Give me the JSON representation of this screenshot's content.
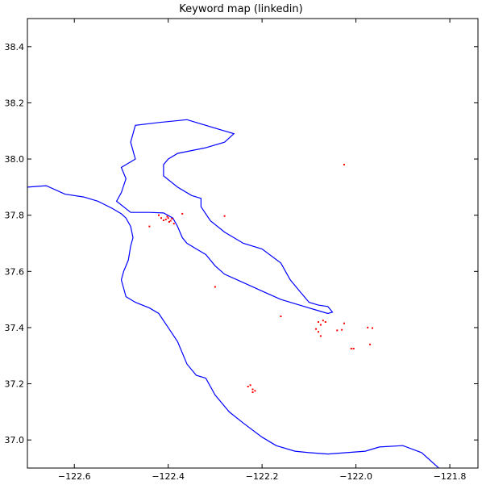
{
  "chart_data": {
    "type": "scatter",
    "title": "Keyword map (linkedin)",
    "xlabel": "",
    "ylabel": "",
    "xlim": [
      -122.7,
      -121.74
    ],
    "ylim": [
      36.9,
      38.5
    ],
    "grid": false,
    "x_ticks": [
      -122.6,
      -122.4,
      -122.2,
      -122.0,
      -121.8
    ],
    "x_tick_labels": [
      "−122.6",
      "−122.4",
      "−122.2",
      "−122.0",
      "−121.8"
    ],
    "y_ticks": [
      37.0,
      37.2,
      37.4,
      37.6,
      37.8,
      38.0,
      38.2,
      38.4
    ],
    "y_tick_labels": [
      "37.0",
      "37.2",
      "37.4",
      "37.6",
      "37.8",
      "38.0",
      "38.2",
      "38.4"
    ],
    "colors": {
      "coastline": "#0000ff",
      "points": "#ff0000"
    },
    "coastline": [
      [
        -122.7,
        37.9
      ],
      [
        -122.66,
        37.905
      ],
      [
        -122.62,
        37.875
      ],
      [
        -122.58,
        37.865
      ],
      [
        -122.55,
        37.85
      ],
      [
        -122.52,
        37.825
      ],
      [
        -122.5,
        37.805
      ],
      [
        -122.49,
        37.79
      ],
      [
        -122.48,
        37.76
      ],
      [
        -122.475,
        37.72
      ],
      [
        -122.48,
        37.69
      ],
      [
        -122.485,
        37.64
      ],
      [
        -122.495,
        37.6
      ],
      [
        -122.5,
        37.57
      ],
      [
        -122.49,
        37.51
      ],
      [
        -122.47,
        37.49
      ],
      [
        -122.44,
        37.47
      ],
      [
        -122.42,
        37.45
      ],
      [
        -122.4,
        37.4
      ],
      [
        -122.38,
        37.35
      ],
      [
        -122.36,
        37.27
      ],
      [
        -122.34,
        37.23
      ],
      [
        -122.32,
        37.22
      ],
      [
        -122.3,
        37.16
      ],
      [
        -122.27,
        37.1
      ],
      [
        -122.24,
        37.06
      ],
      [
        -122.2,
        37.01
      ],
      [
        -122.17,
        36.98
      ],
      [
        -122.13,
        36.96
      ],
      [
        -122.1,
        36.955
      ],
      [
        -122.06,
        36.95
      ],
      [
        -122.02,
        36.955
      ],
      [
        -121.98,
        36.96
      ],
      [
        -121.95,
        36.975
      ],
      [
        -121.9,
        36.98
      ],
      [
        -121.86,
        36.955
      ],
      [
        -121.81,
        36.88
      ]
    ],
    "bay": [
      [
        -122.48,
        37.81
      ],
      [
        -122.44,
        37.81
      ],
      [
        -122.41,
        37.808
      ],
      [
        -122.39,
        37.79
      ],
      [
        -122.38,
        37.76
      ],
      [
        -122.37,
        37.72
      ],
      [
        -122.36,
        37.7
      ],
      [
        -122.34,
        37.68
      ],
      [
        -122.32,
        37.66
      ],
      [
        -122.3,
        37.62
      ],
      [
        -122.28,
        37.59
      ],
      [
        -122.24,
        37.56
      ],
      [
        -122.2,
        37.53
      ],
      [
        -122.16,
        37.5
      ],
      [
        -122.12,
        37.48
      ],
      [
        -122.08,
        37.46
      ],
      [
        -122.06,
        37.45
      ],
      [
        -122.05,
        37.455
      ],
      [
        -122.06,
        37.475
      ],
      [
        -122.08,
        37.48
      ],
      [
        -122.1,
        37.49
      ],
      [
        -122.12,
        37.53
      ],
      [
        -122.14,
        37.57
      ],
      [
        -122.16,
        37.63
      ],
      [
        -122.2,
        37.68
      ],
      [
        -122.24,
        37.7
      ],
      [
        -122.28,
        37.74
      ],
      [
        -122.31,
        37.78
      ],
      [
        -122.33,
        37.83
      ],
      [
        -122.33,
        37.86
      ],
      [
        -122.35,
        37.87
      ],
      [
        -122.38,
        37.9
      ],
      [
        -122.41,
        37.94
      ],
      [
        -122.41,
        37.98
      ],
      [
        -122.4,
        38.0
      ],
      [
        -122.38,
        38.02
      ],
      [
        -122.32,
        38.04
      ],
      [
        -122.28,
        38.06
      ],
      [
        -122.26,
        38.09
      ],
      [
        -122.3,
        38.11
      ],
      [
        -122.36,
        38.14
      ],
      [
        -122.42,
        38.13
      ],
      [
        -122.47,
        38.12
      ],
      [
        -122.48,
        38.06
      ],
      [
        -122.47,
        38.0
      ],
      [
        -122.5,
        37.97
      ],
      [
        -122.49,
        37.93
      ],
      [
        -122.5,
        37.88
      ],
      [
        -122.51,
        37.85
      ],
      [
        -122.48,
        37.81
      ]
    ],
    "points": [
      [
        -122.405,
        37.785
      ],
      [
        -122.4,
        37.79
      ],
      [
        -122.395,
        37.78
      ],
      [
        -122.41,
        37.782
      ],
      [
        -122.398,
        37.776
      ],
      [
        -122.402,
        37.795
      ],
      [
        -122.392,
        37.788
      ],
      [
        -122.415,
        37.79
      ],
      [
        -122.388,
        37.77
      ],
      [
        -122.42,
        37.8
      ],
      [
        -122.44,
        37.76
      ],
      [
        -122.37,
        37.805
      ],
      [
        -122.28,
        37.797
      ],
      [
        -122.3,
        37.545
      ],
      [
        -122.16,
        37.44
      ],
      [
        -122.08,
        37.42
      ],
      [
        -122.075,
        37.41
      ],
      [
        -122.07,
        37.425
      ],
      [
        -122.065,
        37.42
      ],
      [
        -122.085,
        37.395
      ],
      [
        -122.08,
        37.385
      ],
      [
        -122.075,
        37.37
      ],
      [
        -122.04,
        37.39
      ],
      [
        -122.03,
        37.392
      ],
      [
        -122.025,
        37.415
      ],
      [
        -122.005,
        37.325
      ],
      [
        -122.01,
        37.325
      ],
      [
        -121.975,
        37.4
      ],
      [
        -121.965,
        37.398
      ],
      [
        -121.97,
        37.34
      ],
      [
        -122.23,
        37.19
      ],
      [
        -122.225,
        37.195
      ],
      [
        -122.22,
        37.18
      ],
      [
        -122.215,
        37.175
      ],
      [
        -122.22,
        37.17
      ],
      [
        -122.025,
        37.98
      ]
    ]
  }
}
